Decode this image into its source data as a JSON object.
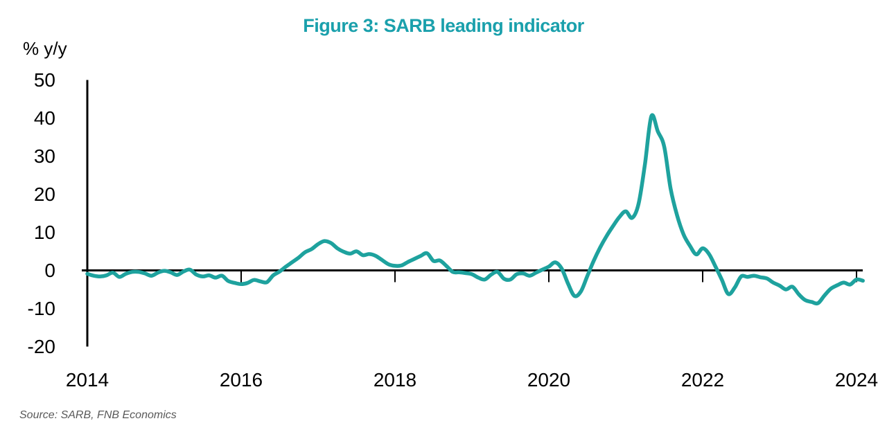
{
  "title": {
    "text": "Figure 3: SARB leading indicator",
    "color": "#1AA0AC"
  },
  "y_axis_unit": "% y/y",
  "source_note": "Source: SARB, FNB Economics",
  "colors": {
    "line": "#1EA29E",
    "axis": "#000000",
    "title": "#1AA0AC",
    "source_text": "#595959",
    "background": "#ffffff"
  },
  "chart_data": {
    "type": "line",
    "title": "Figure 3: SARB leading indicator",
    "xlabel": "",
    "ylabel": "% y/y",
    "ylim": [
      -20,
      50
    ],
    "xlim": [
      2014,
      2024.17
    ],
    "yticks": [
      50,
      40,
      30,
      20,
      10,
      0,
      -10,
      -20
    ],
    "xticks": [
      2014,
      2016,
      2018,
      2020,
      2022,
      2024
    ],
    "grid": false,
    "legend_position": "none",
    "line_color": "#1EA29E",
    "series": [
      {
        "name": "SARB leading indicator (% y/y)",
        "frequency": "monthly",
        "x": [
          2014.0,
          2014.083,
          2014.167,
          2014.25,
          2014.333,
          2014.417,
          2014.5,
          2014.583,
          2014.667,
          2014.75,
          2014.833,
          2014.917,
          2015.0,
          2015.083,
          2015.167,
          2015.25,
          2015.333,
          2015.417,
          2015.5,
          2015.583,
          2015.667,
          2015.75,
          2015.833,
          2015.917,
          2016.0,
          2016.083,
          2016.167,
          2016.25,
          2016.333,
          2016.417,
          2016.5,
          2016.583,
          2016.667,
          2016.75,
          2016.833,
          2016.917,
          2017.0,
          2017.083,
          2017.167,
          2017.25,
          2017.333,
          2017.417,
          2017.5,
          2017.583,
          2017.667,
          2017.75,
          2017.833,
          2017.917,
          2018.0,
          2018.083,
          2018.167,
          2018.25,
          2018.333,
          2018.417,
          2018.5,
          2018.583,
          2018.667,
          2018.75,
          2018.833,
          2018.917,
          2019.0,
          2019.083,
          2019.167,
          2019.25,
          2019.333,
          2019.417,
          2019.5,
          2019.583,
          2019.667,
          2019.75,
          2019.833,
          2019.917,
          2020.0,
          2020.083,
          2020.167,
          2020.25,
          2020.333,
          2020.417,
          2020.5,
          2020.583,
          2020.667,
          2020.75,
          2020.833,
          2020.917,
          2021.0,
          2021.083,
          2021.167,
          2021.25,
          2021.333,
          2021.417,
          2021.5,
          2021.583,
          2021.667,
          2021.75,
          2021.833,
          2021.917,
          2022.0,
          2022.083,
          2022.167,
          2022.25,
          2022.333,
          2022.417,
          2022.5,
          2022.583,
          2022.667,
          2022.75,
          2022.833,
          2022.917,
          2023.0,
          2023.083,
          2023.167,
          2023.25,
          2023.333,
          2023.417,
          2023.5,
          2023.583,
          2023.667,
          2023.75,
          2023.833,
          2023.917,
          2024.0,
          2024.083
        ],
        "values": [
          -0.9,
          -1.4,
          -1.6,
          -1.3,
          -0.6,
          -1.7,
          -0.9,
          -0.4,
          -0.4,
          -0.8,
          -1.4,
          -0.6,
          -0.1,
          -0.5,
          -1.2,
          -0.3,
          0.2,
          -1.1,
          -1.6,
          -1.3,
          -1.9,
          -1.4,
          -2.8,
          -3.3,
          -3.6,
          -3.3,
          -2.5,
          -2.9,
          -3.1,
          -1.3,
          -0.3,
          1.0,
          2.2,
          3.4,
          4.8,
          5.6,
          6.9,
          7.7,
          7.2,
          5.8,
          4.9,
          4.4,
          5.0,
          4.0,
          4.3,
          3.8,
          2.7,
          1.6,
          1.2,
          1.3,
          2.2,
          3.0,
          3.8,
          4.5,
          2.5,
          2.6,
          1.2,
          -0.4,
          -0.5,
          -0.7,
          -1.0,
          -1.9,
          -2.4,
          -1.1,
          -0.4,
          -2.2,
          -2.4,
          -1.0,
          -0.8,
          -1.4,
          -0.6,
          0.2,
          1.0,
          2.1,
          0.5,
          -3.5,
          -6.7,
          -5.5,
          -1.5,
          2.5,
          6.0,
          9.0,
          11.6,
          14.0,
          15.5,
          13.8,
          17.5,
          28.0,
          40.5,
          36.5,
          32.5,
          21.5,
          14.5,
          9.5,
          6.5,
          4.2,
          5.8,
          4.3,
          1.0,
          -2.5,
          -6.2,
          -4.5,
          -1.6,
          -1.7,
          -1.4,
          -1.8,
          -2.1,
          -3.2,
          -4.0,
          -5.0,
          -4.3,
          -6.3,
          -7.8,
          -8.3,
          -8.6,
          -6.6,
          -4.8,
          -3.9,
          -3.2,
          -3.7,
          -2.4,
          -2.7
        ]
      }
    ]
  }
}
